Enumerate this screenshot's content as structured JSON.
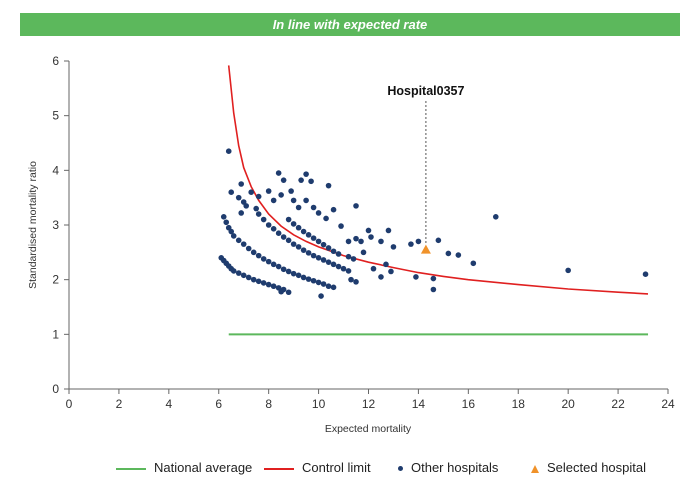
{
  "header": {
    "title": "In line with expected rate"
  },
  "colors": {
    "national": "#5cb85c",
    "control": "#e02020",
    "hospitals": "#1f3c6e",
    "selected": "#f0922a",
    "axis": "#666666"
  },
  "chart_data": {
    "type": "scatter",
    "xlabel": "Expected mortality",
    "ylabel": "Standardised mortality ratio",
    "xlim": [
      0,
      24
    ],
    "ylim": [
      0,
      6
    ],
    "xticks": [
      0,
      2,
      4,
      6,
      8,
      10,
      12,
      14,
      16,
      18,
      20,
      22,
      24
    ],
    "yticks": [
      0,
      1,
      2,
      3,
      4,
      5,
      6
    ],
    "legend_position": "bottom",
    "annotation": {
      "label": "Hospital0357",
      "x": 14.3,
      "y": 2.55
    },
    "series": [
      {
        "name": "National average",
        "kind": "line",
        "x": [
          6.4,
          23.2
        ],
        "y": [
          1,
          1
        ]
      },
      {
        "name": "Control limit",
        "kind": "line",
        "x": [
          6.4,
          6.6,
          6.8,
          7.0,
          7.3,
          7.6,
          8.0,
          8.5,
          9.0,
          9.5,
          10.0,
          11.0,
          12.0,
          13.0,
          14.0,
          15.0,
          16.0,
          18.0,
          20.0,
          22.0,
          23.2
        ],
        "y": [
          5.92,
          5.05,
          4.45,
          4.05,
          3.7,
          3.45,
          3.2,
          2.98,
          2.82,
          2.7,
          2.6,
          2.44,
          2.32,
          2.22,
          2.13,
          2.06,
          2.0,
          1.91,
          1.83,
          1.77,
          1.74
        ]
      },
      {
        "name": "Other hospitals",
        "kind": "scatter",
        "points": [
          [
            6.1,
            2.4
          ],
          [
            6.2,
            2.35
          ],
          [
            6.3,
            2.3
          ],
          [
            6.4,
            2.25
          ],
          [
            6.5,
            2.2
          ],
          [
            6.6,
            2.16
          ],
          [
            6.8,
            2.12
          ],
          [
            7.0,
            2.08
          ],
          [
            7.2,
            2.04
          ],
          [
            7.4,
            2.0
          ],
          [
            7.6,
            1.97
          ],
          [
            7.8,
            1.94
          ],
          [
            8.0,
            1.91
          ],
          [
            8.2,
            1.88
          ],
          [
            8.4,
            1.85
          ],
          [
            8.6,
            1.82
          ],
          [
            8.5,
            1.78
          ],
          [
            8.8,
            1.77
          ],
          [
            6.2,
            3.15
          ],
          [
            6.3,
            3.05
          ],
          [
            6.4,
            2.95
          ],
          [
            6.5,
            2.88
          ],
          [
            6.6,
            2.8
          ],
          [
            6.8,
            2.72
          ],
          [
            7.0,
            2.65
          ],
          [
            7.2,
            2.57
          ],
          [
            7.4,
            2.5
          ],
          [
            7.6,
            2.44
          ],
          [
            7.8,
            2.38
          ],
          [
            8.0,
            2.33
          ],
          [
            8.2,
            2.28
          ],
          [
            8.4,
            2.24
          ],
          [
            8.6,
            2.19
          ],
          [
            8.8,
            2.15
          ],
          [
            9.0,
            2.11
          ],
          [
            9.2,
            2.08
          ],
          [
            9.4,
            2.04
          ],
          [
            9.6,
            2.01
          ],
          [
            9.8,
            1.98
          ],
          [
            10.0,
            1.95
          ],
          [
            10.2,
            1.92
          ],
          [
            10.4,
            1.88
          ],
          [
            10.6,
            1.86
          ],
          [
            10.1,
            1.7
          ],
          [
            7.5,
            3.3
          ],
          [
            7.6,
            3.2
          ],
          [
            7.8,
            3.1
          ],
          [
            8.0,
            3.0
          ],
          [
            8.2,
            2.93
          ],
          [
            8.4,
            2.85
          ],
          [
            8.6,
            2.78
          ],
          [
            8.8,
            2.72
          ],
          [
            9.0,
            2.65
          ],
          [
            9.2,
            2.6
          ],
          [
            9.4,
            2.54
          ],
          [
            9.6,
            2.49
          ],
          [
            9.8,
            2.44
          ],
          [
            10.0,
            2.4
          ],
          [
            10.2,
            2.36
          ],
          [
            10.4,
            2.32
          ],
          [
            10.6,
            2.28
          ],
          [
            10.8,
            2.24
          ],
          [
            11.0,
            2.2
          ],
          [
            11.2,
            2.16
          ],
          [
            11.3,
            2.0
          ],
          [
            11.5,
            1.96
          ],
          [
            8.8,
            3.1
          ],
          [
            9.0,
            3.02
          ],
          [
            9.2,
            2.95
          ],
          [
            9.4,
            2.88
          ],
          [
            9.6,
            2.82
          ],
          [
            9.8,
            2.76
          ],
          [
            10.0,
            2.7
          ],
          [
            10.2,
            2.64
          ],
          [
            10.4,
            2.58
          ],
          [
            10.6,
            2.52
          ],
          [
            10.8,
            2.47
          ],
          [
            11.2,
            2.42
          ],
          [
            11.4,
            2.38
          ],
          [
            6.4,
            4.35
          ],
          [
            6.9,
            3.75
          ],
          [
            6.5,
            3.6
          ],
          [
            6.8,
            3.5
          ],
          [
            7.0,
            3.42
          ],
          [
            7.1,
            3.35
          ],
          [
            6.9,
            3.22
          ],
          [
            7.3,
            3.6
          ],
          [
            7.6,
            3.52
          ],
          [
            8.0,
            3.62
          ],
          [
            8.2,
            3.45
          ],
          [
            8.5,
            3.55
          ],
          [
            8.4,
            3.95
          ],
          [
            8.6,
            3.82
          ],
          [
            8.9,
            3.62
          ],
          [
            9.3,
            3.82
          ],
          [
            9.5,
            3.93
          ],
          [
            9.7,
            3.8
          ],
          [
            9.0,
            3.45
          ],
          [
            9.2,
            3.32
          ],
          [
            9.5,
            3.45
          ],
          [
            9.8,
            3.32
          ],
          [
            10.0,
            3.22
          ],
          [
            10.3,
            3.12
          ],
          [
            10.4,
            3.72
          ],
          [
            10.6,
            3.28
          ],
          [
            11.5,
            3.35
          ],
          [
            10.9,
            2.98
          ],
          [
            11.2,
            2.7
          ],
          [
            11.5,
            2.75
          ],
          [
            11.7,
            2.7
          ],
          [
            12.0,
            2.9
          ],
          [
            12.1,
            2.78
          ],
          [
            12.5,
            2.7
          ],
          [
            12.8,
            2.9
          ],
          [
            13.0,
            2.6
          ],
          [
            11.8,
            2.5
          ],
          [
            12.2,
            2.2
          ],
          [
            12.7,
            2.28
          ],
          [
            12.5,
            2.05
          ],
          [
            12.9,
            2.15
          ],
          [
            13.7,
            2.65
          ],
          [
            14.0,
            2.7
          ],
          [
            13.9,
            2.05
          ],
          [
            14.6,
            2.02
          ],
          [
            14.8,
            2.72
          ],
          [
            14.6,
            1.82
          ],
          [
            15.2,
            2.48
          ],
          [
            15.6,
            2.45
          ],
          [
            16.2,
            2.3
          ],
          [
            17.1,
            3.15
          ],
          [
            20.0,
            2.17
          ],
          [
            23.1,
            2.1
          ]
        ]
      },
      {
        "name": "Selected hospital",
        "kind": "marker",
        "x": [
          14.3
        ],
        "y": [
          2.55
        ]
      }
    ]
  }
}
